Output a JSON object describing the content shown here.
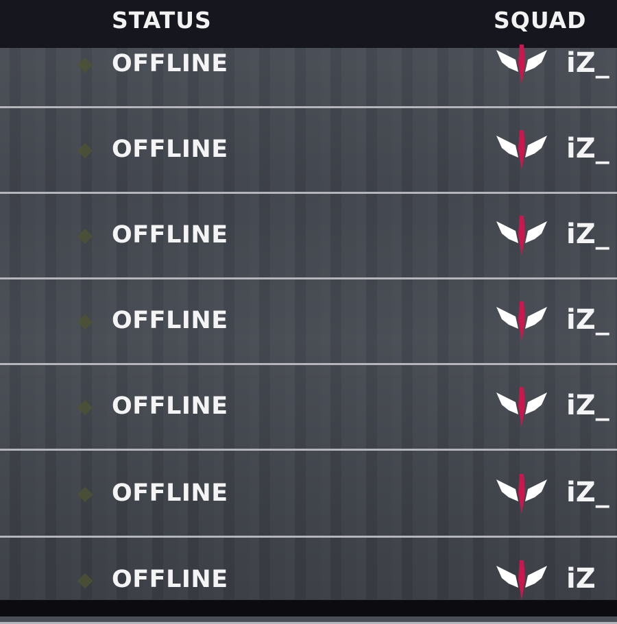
{
  "header": {
    "status_label": "STATUS",
    "squad_label": "SQUAD"
  },
  "colors": {
    "emblem_accent": "#c8184e",
    "emblem_wings": "#ffffff",
    "status_dot": "#4e5232"
  },
  "rows": [
    {
      "status": "OFFLINE",
      "squad": "iZ_"
    },
    {
      "status": "OFFLINE",
      "squad": "iZ_"
    },
    {
      "status": "OFFLINE",
      "squad": "iZ_"
    },
    {
      "status": "OFFLINE",
      "squad": "iZ_"
    },
    {
      "status": "OFFLINE",
      "squad": "iZ_"
    },
    {
      "status": "OFFLINE",
      "squad": "iZ_"
    },
    {
      "status": "OFFLINE",
      "squad": "iZ"
    }
  ]
}
